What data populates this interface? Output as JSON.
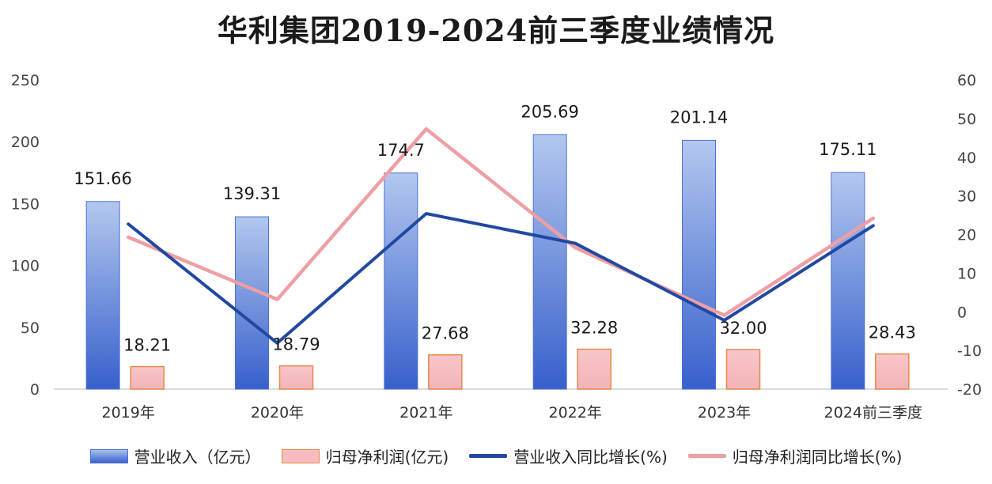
{
  "chart_data": {
    "type": "bar",
    "title": "华利集团2019-2024前三季度业绩情况",
    "categories": [
      "2019年",
      "2020年",
      "2021年",
      "2022年",
      "2023年",
      "2024前三季度"
    ],
    "bar_series": [
      {
        "name": "营业收入（亿元）",
        "values": [
          151.66,
          139.31,
          174.7,
          205.69,
          201.14,
          175.11
        ],
        "labels": [
          "151.66",
          "139.31",
          "174.7",
          "205.69",
          "201.14",
          "175.11"
        ],
        "axis": "left",
        "color": "#3a63cf"
      },
      {
        "name": "归母净利润(亿元)",
        "values": [
          18.21,
          18.79,
          27.68,
          32.28,
          32.0,
          28.43
        ],
        "labels": [
          "18.21",
          "18.79",
          "27.68",
          "32.28",
          "32.00",
          "28.43"
        ],
        "axis": "left",
        "color": "#f6bcc0"
      }
    ],
    "line_series": [
      {
        "name": "营业收入同比增长(%)",
        "values": [
          22.7,
          -8.1,
          25.4,
          17.7,
          -2.2,
          22.3
        ],
        "axis": "right",
        "color": "#2148a3"
      },
      {
        "name": "归母净利润同比增长(%)",
        "values": [
          19.3,
          3.2,
          47.3,
          16.6,
          -0.9,
          24.2
        ],
        "axis": "right",
        "color": "#ee9ea4"
      }
    ],
    "ylim_left": [
      0,
      250
    ],
    "yticks_left": [
      "0",
      "50",
      "100",
      "150",
      "200",
      "250"
    ],
    "ylim_right": [
      -20,
      60
    ],
    "yticks_right": [
      "-20",
      "-10",
      "0",
      "10",
      "20",
      "30",
      "40",
      "50",
      "60"
    ],
    "grid": false,
    "legend_position": "bottom"
  },
  "legend": {
    "items": [
      "营业收入（亿元）",
      "归母净利润(亿元)",
      "营业收入同比增长(%)",
      "归母净利润同比增长(%)"
    ]
  }
}
